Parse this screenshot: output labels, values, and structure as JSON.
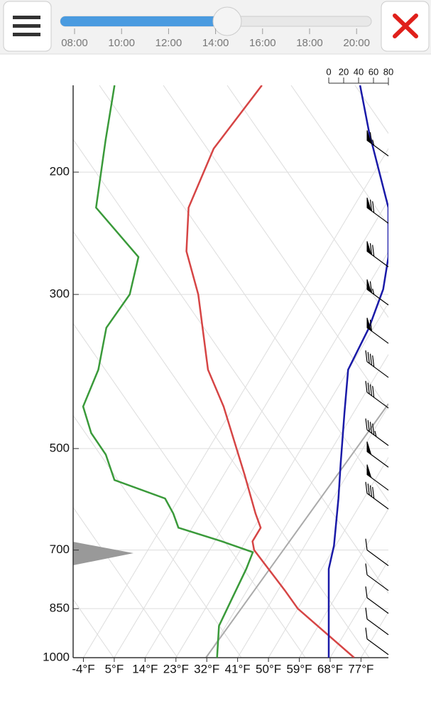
{
  "slider": {
    "labels": [
      "08:00",
      "10:00",
      "12:00",
      "14:00",
      "16:00",
      "18:00",
      "20:00"
    ]
  },
  "chart_data": {
    "type": "skew-t",
    "ylim": [
      1000,
      150
    ],
    "log_y": true,
    "yticks": [
      200,
      300,
      500,
      700,
      850,
      1000
    ],
    "xlim": [
      -7,
      85
    ],
    "xticks": [
      {
        "value": -4,
        "label": "-4°F"
      },
      {
        "value": 5,
        "label": "5°F"
      },
      {
        "value": 14,
        "label": "14°F"
      },
      {
        "value": 23,
        "label": "23°F"
      },
      {
        "value": 32,
        "label": "32°F"
      },
      {
        "value": 41,
        "label": "41°F"
      },
      {
        "value": 50,
        "label": "50°F"
      },
      {
        "value": 59,
        "label": "59°F"
      },
      {
        "value": 68,
        "label": "68°F"
      },
      {
        "value": 77,
        "label": "77°F"
      }
    ],
    "x2lim": [
      0,
      80
    ],
    "x2ticks": [
      0,
      20,
      40,
      60,
      80
    ],
    "grid": true,
    "series": [
      {
        "color": "#d64545",
        "pressure": [
          1000,
          850,
          800,
          700,
          680,
          650,
          620,
          545,
          435,
          385,
          300,
          260,
          225,
          185,
          150
        ],
        "values": [
          75,
          50,
          43,
          27,
          25,
          25,
          21,
          11,
          -7,
          -18,
          -34,
          -45,
          -52,
          -55,
          -52
        ]
      },
      {
        "color": "#3a9a3a",
        "pressure": [
          1000,
          900,
          820,
          745,
          705,
          680,
          650,
          620,
          590,
          555,
          510,
          475,
          435,
          385,
          335,
          300,
          265,
          225,
          180,
          150
        ],
        "values": [
          35,
          30,
          29,
          28,
          27,
          16,
          1,
          -3,
          -8,
          -26,
          -33,
          -41,
          -48,
          -50,
          -55,
          -54,
          -58,
          -79,
          -88,
          -95
        ]
      },
      {
        "color": "#1a1aa8",
        "axis": "x2",
        "pressure": [
          1000,
          745,
          690,
          590,
          525,
          445,
          385,
          335,
          295,
          265,
          225,
          175,
          150
        ],
        "values": [
          0,
          0,
          7,
          13,
          16,
          21,
          26,
          54,
          73,
          80,
          80,
          54,
          42
        ]
      }
    ],
    "wind_barbs": {
      "color": "#000000",
      "pressure": [
        180,
        225,
        260,
        295,
        335,
        375,
        415,
        470,
        505,
        545,
        580,
        700,
        760,
        820,
        880,
        940
      ],
      "values": [
        65,
        70,
        70,
        65,
        60,
        40,
        40,
        45,
        50,
        50,
        40,
        10,
        10,
        10,
        10,
        10
      ]
    }
  }
}
